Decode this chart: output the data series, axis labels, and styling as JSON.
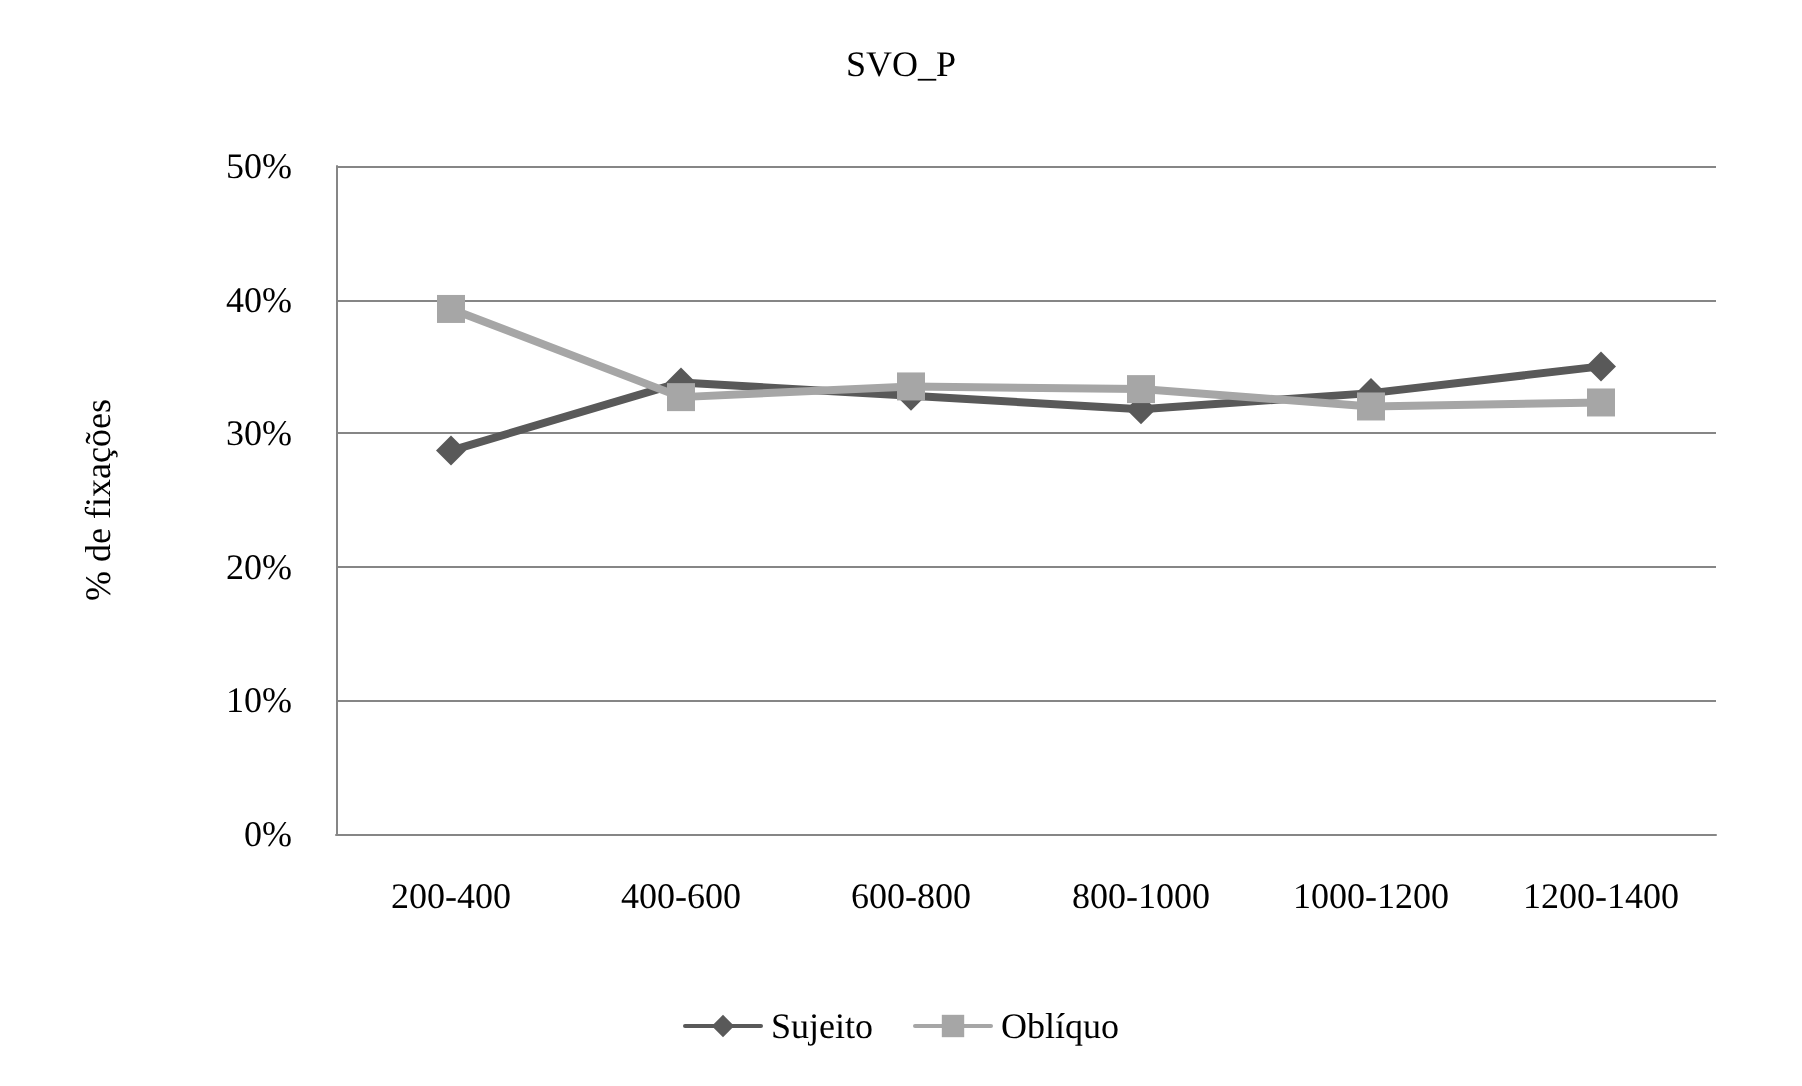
{
  "chart_data": {
    "type": "line",
    "title": "SVO_P",
    "ylabel": "% de fixações",
    "categories": [
      "200-400",
      "400-600",
      "600-800",
      "800-1000",
      "1000-1200",
      "1200-1400"
    ],
    "series": [
      {
        "name": "Sujeito",
        "color": "#595959",
        "marker": "diamond",
        "values": [
          28.7,
          33.8,
          32.8,
          31.8,
          33.0,
          35.0
        ]
      },
      {
        "name": "Oblíquo",
        "color": "#a6a6a6",
        "marker": "square",
        "values": [
          39.3,
          32.7,
          33.5,
          33.3,
          32.0,
          32.3
        ]
      }
    ],
    "ylim": [
      0,
      50
    ],
    "yticks": [
      {
        "value": 0,
        "label": "0%"
      },
      {
        "value": 10,
        "label": "10%"
      },
      {
        "value": 20,
        "label": "20%"
      },
      {
        "value": 30,
        "label": "30%"
      },
      {
        "value": 40,
        "label": "40%"
      },
      {
        "value": 50,
        "label": "50%"
      }
    ],
    "grid": "y",
    "legend": "bottom",
    "line_style": "solid"
  }
}
